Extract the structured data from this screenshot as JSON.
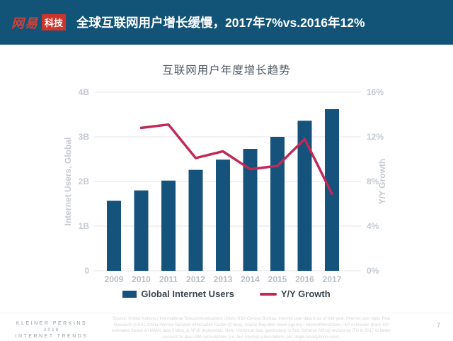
{
  "header": {
    "logo_brand": "网易",
    "logo_sub": "科技",
    "title": "全球互联网用户增长缓慢，2017年7%vs.2016年12%"
  },
  "chart": {
    "title": "互联网用户年度增长趋势",
    "left_axis_title": "Internet Users, Global",
    "right_axis_title": "Y/Y Growth",
    "left_ticks": [
      "4B",
      "3B",
      "2B",
      "1B",
      "0"
    ],
    "right_ticks": [
      "16%",
      "12%",
      "8%",
      "4%",
      "0%"
    ],
    "legend": [
      {
        "label": "Global Internet Users",
        "type": "bar"
      },
      {
        "label": "Y/Y Growth",
        "type": "line"
      }
    ]
  },
  "chart_data": {
    "type": "bar",
    "title": "互联网用户年度增长趋势",
    "categories": [
      "2009",
      "2010",
      "2011",
      "2012",
      "2013",
      "2014",
      "2015",
      "2016",
      "2017"
    ],
    "series": [
      {
        "name": "Global Internet Users",
        "type": "bar",
        "axis": "left",
        "values": [
          1.57,
          1.8,
          2.02,
          2.26,
          2.49,
          2.73,
          3.0,
          3.36,
          3.62
        ]
      },
      {
        "name": "Y/Y Growth",
        "type": "line",
        "axis": "right",
        "x": [
          "2010",
          "2011",
          "2012",
          "2013",
          "2014",
          "2015",
          "2016",
          "2017"
        ],
        "values": [
          12.8,
          13.1,
          10.1,
          10.7,
          9.1,
          9.4,
          11.8,
          6.9
        ]
      }
    ],
    "left_ylabel": "Internet Users, Global",
    "right_ylabel": "Y/Y Growth",
    "left_ylim": [
      0,
      4
    ],
    "right_ylim": [
      0,
      16
    ],
    "grid": true,
    "legend_position": "bottom",
    "colors": {
      "bar": "#15537c",
      "line": "#bf2a56"
    }
  },
  "footer": {
    "brand_lines": [
      "KLEINER PERKINS",
      "2018",
      "INTERNET TRENDS"
    ],
    "source": "Source: United Nations / International Telecommunications Union, USA Census Bureau. Internet user data is as of mid-year. Internet user data: Pew Research (USA), China Internet Network Information Center (China), Islamic Republic News Agency / InternetWorldStats / KP estimates (Iran), KP estimates based on IAMAI data (India), & APJII (Indonesia). Note: Historical data (particularly in Sub-Saharan Africa) revised by ITU in 2017 to better account for dual-SIM subscriptions (i.e. two Internet subscriptions per single smartphone user).",
    "page_number": "7"
  },
  "colors": {
    "header_bg": "#125378",
    "bar": "#15537c",
    "line": "#bf2a56",
    "logo_red": "#cf342c",
    "axis_text": "#c5cad0",
    "title_text": "#4e5a66"
  }
}
